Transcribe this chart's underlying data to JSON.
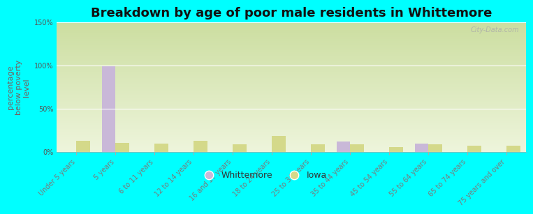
{
  "title": "Breakdown by age of poor male residents in Whittemore",
  "ylabel": "percentage\nbelow poverty\nlevel",
  "categories": [
    "Under 5 years",
    "5 years",
    "6 to 11 years",
    "12 to 14 years",
    "16 and 17 years",
    "18 to 24 years",
    "25 to 34 years",
    "35 to 44 years",
    "45 to 54 years",
    "55 to 64 years",
    "65 to 74 years",
    "75 years and over"
  ],
  "whittemore_values": [
    0,
    100,
    0,
    0,
    0,
    0,
    0,
    12,
    0,
    10,
    0,
    0
  ],
  "iowa_values": [
    13,
    11,
    10,
    13,
    9,
    19,
    9,
    9,
    6,
    9,
    7,
    7
  ],
  "whittemore_color": "#c9b8d8",
  "iowa_color": "#d4d98a",
  "background_color": "#00ffff",
  "grad_top": "#ccdea0",
  "grad_bottom": "#eef5dc",
  "ylim": [
    0,
    150
  ],
  "yticks": [
    0,
    50,
    100,
    150
  ],
  "ytick_labels": [
    "0%",
    "50%",
    "100%",
    "150%"
  ],
  "bar_width": 0.35,
  "title_fontsize": 13,
  "axis_label_fontsize": 8,
  "tick_fontsize": 7,
  "legend_fontsize": 9,
  "watermark": "City-Data.com"
}
